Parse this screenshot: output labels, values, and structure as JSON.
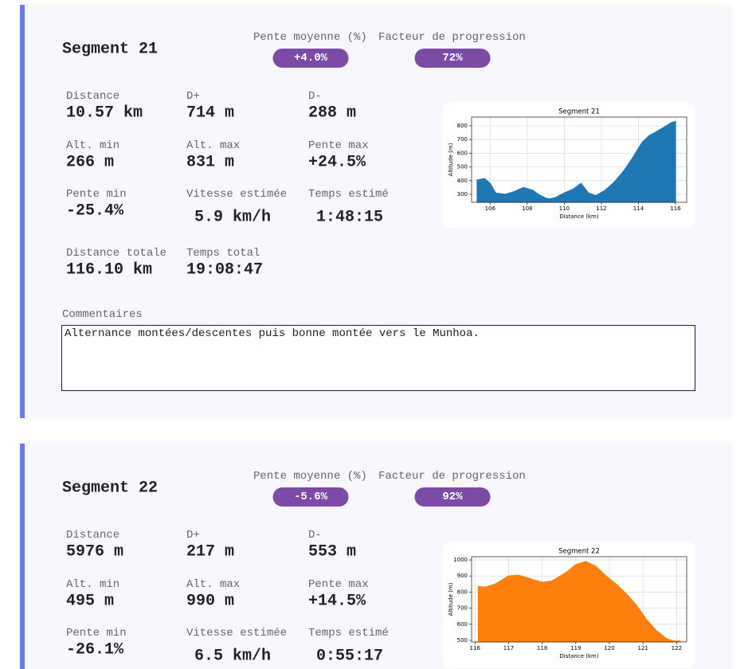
{
  "segments": [
    {
      "title": "Segment 21",
      "badges": [
        {
          "label": "Pente moyenne (%)",
          "value": "+4.0%"
        },
        {
          "label": "Facteur de progression",
          "value": "72%"
        }
      ],
      "stats": [
        {
          "label": "Distance",
          "value": "10.57 km"
        },
        {
          "label": "D+",
          "value": "714 m"
        },
        {
          "label": "D-",
          "value": "288 m"
        },
        {
          "label": "Alt. min",
          "value": "266 m"
        },
        {
          "label": "Alt. max",
          "value": "831 m"
        },
        {
          "label": "Pente max",
          "value": "+24.5%"
        },
        {
          "label": "Pente min",
          "value": "-25.4%"
        },
        {
          "label": "Vitesse estimée",
          "value": "5.9 km/h"
        },
        {
          "label": "Temps estimé",
          "value": "1:48:15"
        },
        {
          "label": "Distance totale",
          "value": "116.10 km"
        },
        {
          "label": "Temps total",
          "value": "19:08:47"
        }
      ],
      "comment_label": "Commentaires",
      "comment": "Alternance montées/descentes puis bonne montée vers le Munhoa.",
      "chart": {
        "type": "area",
        "title": "Segment 21",
        "x_label": "Distance (km)",
        "y_label": "Altitude (m)",
        "color": "#1f77b4",
        "x": [
          105.3,
          105.7,
          106.0,
          106.3,
          106.8,
          107.3,
          107.8,
          108.3,
          108.6,
          109.0,
          109.2,
          109.5,
          110.0,
          110.5,
          110.9,
          111.3,
          111.7,
          112.2,
          112.7,
          113.2,
          113.7,
          114.2,
          114.6,
          115.0,
          115.5,
          115.8,
          116.0
        ],
        "values": [
          405,
          415,
          380,
          310,
          300,
          320,
          350,
          330,
          300,
          272,
          266,
          275,
          310,
          340,
          380,
          310,
          290,
          330,
          390,
          470,
          570,
          680,
          730,
          760,
          800,
          825,
          831
        ],
        "xlim": [
          105.0,
          116.6
        ],
        "ylim": [
          242,
          864
        ],
        "xticks": [
          106,
          108,
          110,
          112,
          114,
          116
        ],
        "yticks": [
          300,
          400,
          500,
          600,
          700,
          800
        ],
        "grid": true
      }
    },
    {
      "title": "Segment 22",
      "badges": [
        {
          "label": "Pente moyenne (%)",
          "value": "-5.6%"
        },
        {
          "label": "Facteur de progression",
          "value": "92%"
        }
      ],
      "stats": [
        {
          "label": "Distance",
          "value": "5976 m"
        },
        {
          "label": "D+",
          "value": "217 m"
        },
        {
          "label": "D-",
          "value": "553 m"
        },
        {
          "label": "Alt. min",
          "value": "495 m"
        },
        {
          "label": "Alt. max",
          "value": "990 m"
        },
        {
          "label": "Pente max",
          "value": "+14.5%"
        },
        {
          "label": "Pente min",
          "value": "-26.1%"
        },
        {
          "label": "Vitesse estimée",
          "value": "6.5 km/h"
        },
        {
          "label": "Temps estimé",
          "value": "0:55:17"
        }
      ],
      "chart": {
        "type": "area",
        "title": "Segment 22",
        "x_label": "Distance (km)",
        "y_label": "Altitude (m)",
        "color": "#ff7f0e",
        "x": [
          116.1,
          116.3,
          116.6,
          117.0,
          117.3,
          117.7,
          118.0,
          118.3,
          118.7,
          119.0,
          119.3,
          119.6,
          119.9,
          120.2,
          120.5,
          120.8,
          121.1,
          121.4,
          121.7,
          121.9,
          122.1
        ],
        "values": [
          835,
          830,
          850,
          900,
          905,
          880,
          860,
          870,
          920,
          970,
          990,
          960,
          900,
          850,
          790,
          720,
          630,
          560,
          510,
          496,
          495
        ],
        "xlim": [
          115.9,
          122.3
        ],
        "ylim": [
          490,
          1020
        ],
        "xticks": [
          116,
          117,
          118,
          119,
          120,
          121,
          122
        ],
        "yticks": [
          500,
          600,
          700,
          800,
          900,
          1000
        ],
        "grid": true
      }
    }
  ]
}
